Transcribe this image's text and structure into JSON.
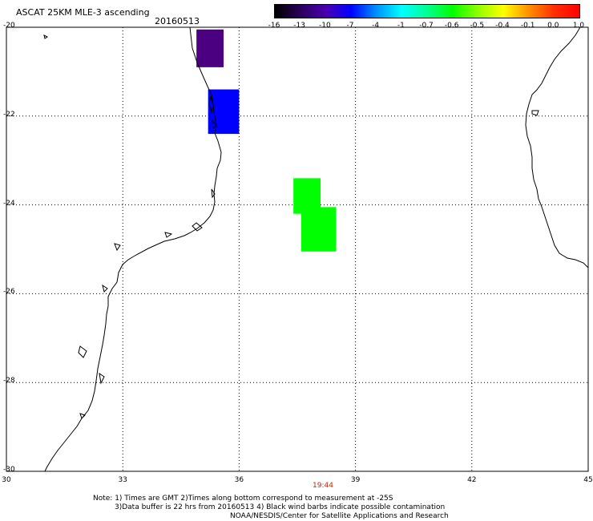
{
  "header": {
    "title": "ASCAT 25KM MLE-3 ascending",
    "date": "20160513"
  },
  "colorbar": {
    "labels": [
      "-16",
      "-13",
      "-10",
      "-7",
      "-4",
      "-1",
      "-0.7",
      "-0.6",
      "-0.5",
      "-0.4",
      "-0.1",
      "0.0",
      "1.0"
    ],
    "colors": [
      "#000000",
      "#2a005a",
      "#4a00b0",
      "#0000ff",
      "#0090ff",
      "#00ffff",
      "#00ff90",
      "#00ff00",
      "#90ff00",
      "#ffff00",
      "#ff9000",
      "#ff3000",
      "#ff0000"
    ]
  },
  "axes": {
    "lat_labels": [
      "-20",
      "-22",
      "-24",
      "-26",
      "-28",
      "-30"
    ],
    "lon_labels": [
      "30",
      "33",
      "36",
      "39",
      "42",
      "45"
    ]
  },
  "time_label": "19:44",
  "notes": [
    "Note: 1) Times are GMT 2)Times along bottom correspond to measurement at -25S",
    "3)Data buffer is 22 hrs from 20160513 4) Black wind barbs indicate possible contamination",
    "NOAA/NESDIS/Center for Satellite Applications and Research"
  ],
  "data_cells": [
    {
      "lon_min": 34.9,
      "lon_max": 35.6,
      "lat_min": -20.9,
      "lat_max": -20.05,
      "color": "#4b0082"
    },
    {
      "lon_min": 35.2,
      "lon_max": 36.0,
      "lat_min": -22.4,
      "lat_max": -21.4,
      "color": "#0000ff"
    },
    {
      "lon_min": 37.4,
      "lon_max": 38.1,
      "lat_min": -24.2,
      "lat_max": -23.4,
      "color": "#00ff00"
    },
    {
      "lon_min": 37.6,
      "lon_max": 38.5,
      "lat_min": -25.05,
      "lat_max": -24.05,
      "color": "#00ff00"
    }
  ]
}
